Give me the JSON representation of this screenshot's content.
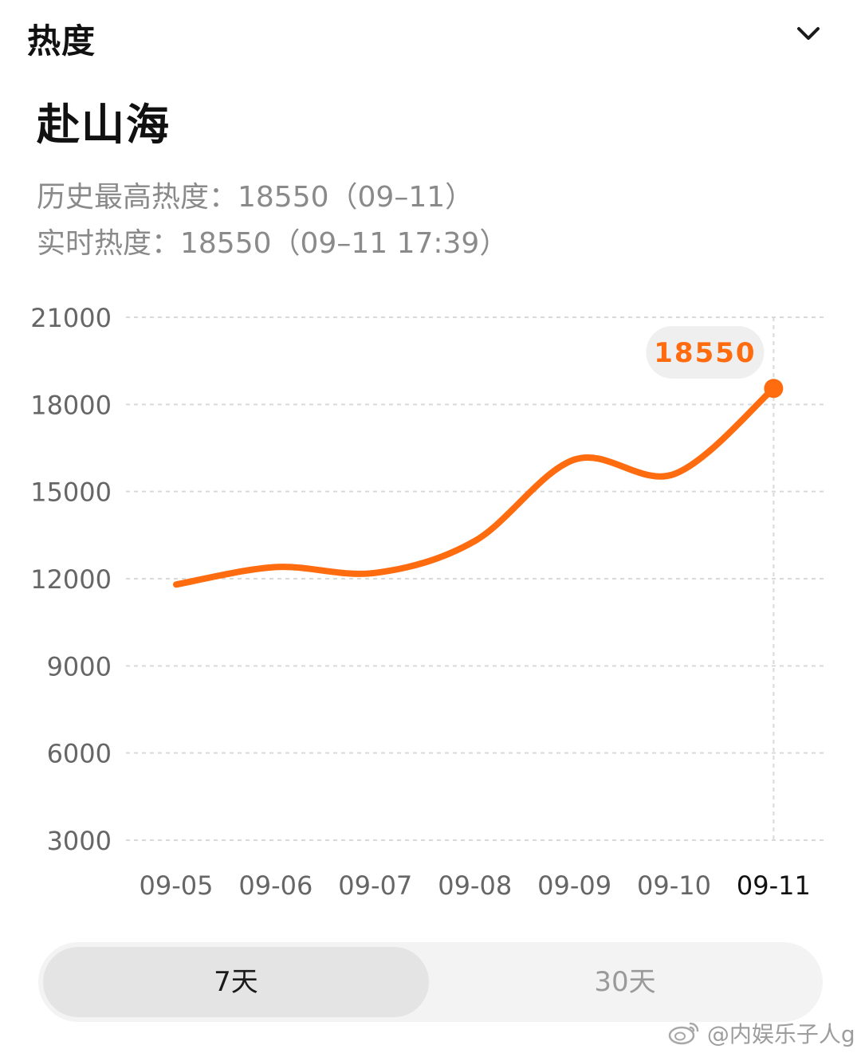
{
  "header": {
    "title": "热度",
    "chevron_icon": "chevron-down-icon"
  },
  "topic": {
    "title": "赴山海"
  },
  "stats": {
    "peak": "历史最高热度：18550（09–11）",
    "realtime": "实时热度：18550（09–11 17:39）"
  },
  "chart_data": {
    "type": "line",
    "categories": [
      "09-05",
      "09-06",
      "09-07",
      "09-08",
      "09-09",
      "09-10",
      "09-11"
    ],
    "values": [
      11800,
      12400,
      12200,
      13300,
      16100,
      15600,
      18550
    ],
    "yticks": [
      21000,
      18000,
      15000,
      12000,
      9000,
      6000,
      3000
    ],
    "ylim": [
      3000,
      21000
    ],
    "highlight": {
      "category": "09-11",
      "value": 18550,
      "label": "18550"
    },
    "grid": "dashed-horizontal",
    "line_color": "#FF6B0F",
    "bubble_bg": "#EFEFEF"
  },
  "range_tabs": {
    "options": [
      "7天",
      "30天"
    ],
    "selected": "7天"
  },
  "watermark": {
    "text": "@内娱乐子人g",
    "icon": "weibo-icon"
  }
}
